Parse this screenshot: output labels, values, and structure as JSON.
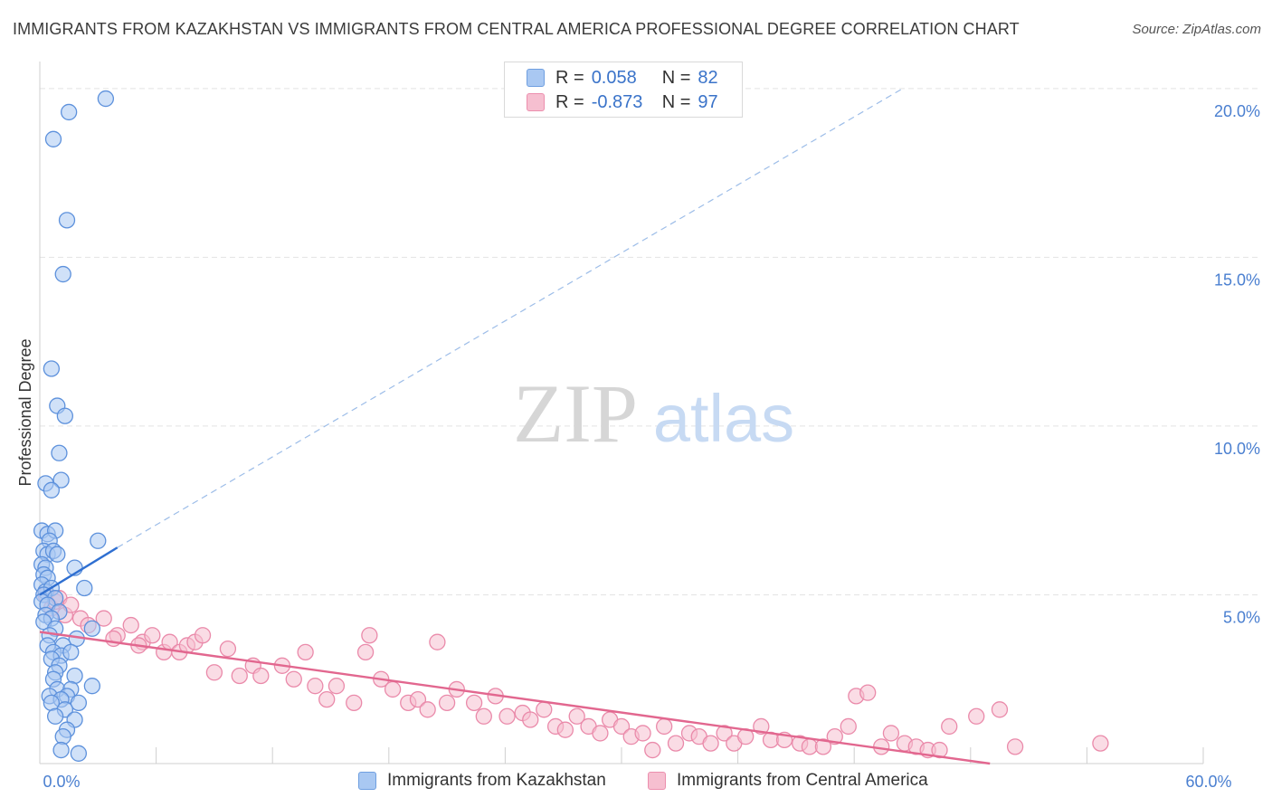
{
  "title": "IMMIGRANTS FROM KAZAKHSTAN VS IMMIGRANTS FROM CENTRAL AMERICA PROFESSIONAL DEGREE CORRELATION CHART",
  "source": "Source: ZipAtlas.com",
  "watermark": {
    "zip": "ZIP",
    "atlas": "atlas"
  },
  "legend": {
    "r_label": "R =",
    "n_label": "N =",
    "rows": [
      {
        "r": "0.058",
        "n": "82",
        "color": "#a9c8f2",
        "border": "#6f9fe0"
      },
      {
        "r": "-0.873",
        "n": "97",
        "color": "#f6bfd0",
        "border": "#ec8fae"
      }
    ]
  },
  "bottom_legend": [
    {
      "label": "Immigrants from Kazakhstan"
    },
    {
      "label": "Immigrants from Central America"
    }
  ],
  "colors": {
    "blue_fill": "#a9c8f2",
    "blue_stroke": "#5d91dc",
    "blue_line": "#2f6fd1",
    "pink_fill": "#f6bfd0",
    "pink_stroke": "#ea8aaa",
    "pink_line": "#e2678f",
    "grid": "#e3e3e3",
    "axis_text": "#4a7fd0"
  },
  "chart_data": {
    "type": "scatter",
    "title": "IMMIGRANTS FROM KAZAKHSTAN VS IMMIGRANTS FROM CENTRAL AMERICA PROFESSIONAL DEGREE CORRELATION CHART",
    "xlabel": "",
    "ylabel": "Professional Degree",
    "xlim": [
      0,
      60
    ],
    "ylim": [
      0,
      20.8
    ],
    "x_tick_labels": [
      {
        "value": 0,
        "label": "0.0%"
      },
      {
        "value": 60,
        "label": "60.0%"
      }
    ],
    "x_minor_ticks": [
      6,
      12,
      18,
      24,
      30,
      36,
      42,
      48,
      54,
      60
    ],
    "y_ticks": [
      {
        "value": 5,
        "label": "5.0%"
      },
      {
        "value": 10,
        "label": "10.0%"
      },
      {
        "value": 15,
        "label": "15.0%"
      },
      {
        "value": 20,
        "label": "20.0%"
      }
    ],
    "series": [
      {
        "name": "Immigrants from Kazakhstan",
        "color": "blue",
        "points": [
          [
            3.4,
            19.7
          ],
          [
            1.5,
            19.3
          ],
          [
            0.7,
            18.5
          ],
          [
            1.4,
            16.1
          ],
          [
            1.2,
            14.5
          ],
          [
            0.6,
            11.7
          ],
          [
            0.9,
            10.6
          ],
          [
            1.3,
            10.3
          ],
          [
            1.0,
            9.2
          ],
          [
            1.1,
            8.4
          ],
          [
            0.3,
            8.3
          ],
          [
            0.6,
            8.1
          ],
          [
            0.1,
            6.9
          ],
          [
            0.4,
            6.8
          ],
          [
            0.8,
            6.9
          ],
          [
            0.5,
            6.6
          ],
          [
            3.0,
            6.6
          ],
          [
            0.2,
            6.3
          ],
          [
            0.4,
            6.2
          ],
          [
            0.7,
            6.3
          ],
          [
            0.9,
            6.2
          ],
          [
            0.1,
            5.9
          ],
          [
            0.3,
            5.8
          ],
          [
            1.8,
            5.8
          ],
          [
            0.2,
            5.6
          ],
          [
            0.4,
            5.5
          ],
          [
            0.1,
            5.3
          ],
          [
            0.3,
            5.1
          ],
          [
            0.6,
            5.2
          ],
          [
            2.3,
            5.2
          ],
          [
            0.2,
            5.0
          ],
          [
            0.8,
            4.9
          ],
          [
            0.1,
            4.8
          ],
          [
            0.4,
            4.7
          ],
          [
            1.0,
            4.5
          ],
          [
            0.3,
            4.4
          ],
          [
            0.6,
            4.3
          ],
          [
            0.2,
            4.2
          ],
          [
            0.8,
            4.0
          ],
          [
            2.7,
            4.0
          ],
          [
            0.5,
            3.8
          ],
          [
            1.9,
            3.7
          ],
          [
            0.4,
            3.5
          ],
          [
            1.2,
            3.5
          ],
          [
            0.7,
            3.3
          ],
          [
            1.1,
            3.2
          ],
          [
            1.6,
            3.3
          ],
          [
            0.6,
            3.1
          ],
          [
            1.0,
            2.9
          ],
          [
            0.8,
            2.7
          ],
          [
            1.8,
            2.6
          ],
          [
            0.7,
            2.5
          ],
          [
            2.7,
            2.3
          ],
          [
            0.9,
            2.2
          ],
          [
            1.6,
            2.2
          ],
          [
            0.5,
            2.0
          ],
          [
            1.4,
            2.0
          ],
          [
            1.1,
            1.9
          ],
          [
            2.0,
            1.8
          ],
          [
            0.6,
            1.8
          ],
          [
            1.3,
            1.6
          ],
          [
            0.8,
            1.4
          ],
          [
            1.8,
            1.3
          ],
          [
            1.4,
            1.0
          ],
          [
            1.2,
            0.8
          ],
          [
            1.1,
            0.4
          ],
          [
            2.0,
            0.3
          ]
        ],
        "trend": {
          "x0": 0,
          "y0": 5.0,
          "x1": 4.0,
          "y1": 6.4
        },
        "trend_extension": {
          "x0": 4.0,
          "y0": 6.4,
          "x1": 44.5,
          "y1": 20.0
        }
      },
      {
        "name": "Immigrants from Central America",
        "color": "pink",
        "points": [
          [
            0.3,
            5.0
          ],
          [
            0.6,
            4.6
          ],
          [
            0.8,
            4.8
          ],
          [
            1.0,
            4.9
          ],
          [
            1.3,
            4.4
          ],
          [
            1.6,
            4.7
          ],
          [
            2.1,
            4.3
          ],
          [
            2.5,
            4.1
          ],
          [
            3.3,
            4.3
          ],
          [
            4.0,
            3.8
          ],
          [
            3.8,
            3.7
          ],
          [
            4.7,
            4.1
          ],
          [
            5.3,
            3.6
          ],
          [
            5.1,
            3.5
          ],
          [
            5.8,
            3.8
          ],
          [
            6.4,
            3.3
          ],
          [
            6.7,
            3.6
          ],
          [
            7.2,
            3.3
          ],
          [
            7.6,
            3.5
          ],
          [
            8.0,
            3.6
          ],
          [
            8.4,
            3.8
          ],
          [
            9.0,
            2.7
          ],
          [
            9.7,
            3.4
          ],
          [
            10.3,
            2.6
          ],
          [
            11.0,
            2.9
          ],
          [
            11.4,
            2.6
          ],
          [
            12.5,
            2.9
          ],
          [
            13.1,
            2.5
          ],
          [
            13.7,
            3.3
          ],
          [
            14.2,
            2.3
          ],
          [
            14.8,
            1.9
          ],
          [
            15.3,
            2.3
          ],
          [
            16.2,
            1.8
          ],
          [
            16.8,
            3.3
          ],
          [
            17.0,
            3.8
          ],
          [
            17.6,
            2.5
          ],
          [
            18.2,
            2.2
          ],
          [
            19.0,
            1.8
          ],
          [
            19.5,
            1.9
          ],
          [
            20.0,
            1.6
          ],
          [
            20.5,
            3.6
          ],
          [
            21.0,
            1.8
          ],
          [
            21.5,
            2.2
          ],
          [
            22.4,
            1.8
          ],
          [
            22.9,
            1.4
          ],
          [
            23.5,
            2.0
          ],
          [
            24.1,
            1.4
          ],
          [
            24.9,
            1.5
          ],
          [
            25.3,
            1.3
          ],
          [
            26.0,
            1.6
          ],
          [
            26.6,
            1.1
          ],
          [
            27.1,
            1.0
          ],
          [
            27.7,
            1.4
          ],
          [
            28.3,
            1.1
          ],
          [
            28.9,
            0.9
          ],
          [
            29.4,
            1.3
          ],
          [
            30.0,
            1.1
          ],
          [
            30.5,
            0.8
          ],
          [
            31.1,
            0.9
          ],
          [
            31.6,
            0.4
          ],
          [
            32.2,
            1.1
          ],
          [
            32.8,
            0.6
          ],
          [
            33.5,
            0.9
          ],
          [
            34.0,
            0.8
          ],
          [
            34.6,
            0.6
          ],
          [
            35.3,
            0.9
          ],
          [
            35.8,
            0.6
          ],
          [
            36.4,
            0.8
          ],
          [
            37.2,
            1.1
          ],
          [
            37.7,
            0.7
          ],
          [
            38.4,
            0.7
          ],
          [
            39.2,
            0.6
          ],
          [
            39.7,
            0.5
          ],
          [
            40.4,
            0.5
          ],
          [
            41.0,
            0.8
          ],
          [
            41.7,
            1.1
          ],
          [
            42.1,
            2.0
          ],
          [
            42.7,
            2.1
          ],
          [
            43.4,
            0.5
          ],
          [
            43.9,
            0.9
          ],
          [
            44.6,
            0.6
          ],
          [
            45.2,
            0.5
          ],
          [
            45.8,
            0.4
          ],
          [
            46.4,
            0.4
          ],
          [
            46.9,
            1.1
          ],
          [
            48.3,
            1.4
          ],
          [
            49.5,
            1.6
          ],
          [
            50.3,
            0.5
          ],
          [
            54.7,
            0.6
          ]
        ],
        "trend": {
          "x0": 0,
          "y0": 3.9,
          "x1": 49.0,
          "y1": 0.0
        }
      }
    ]
  }
}
